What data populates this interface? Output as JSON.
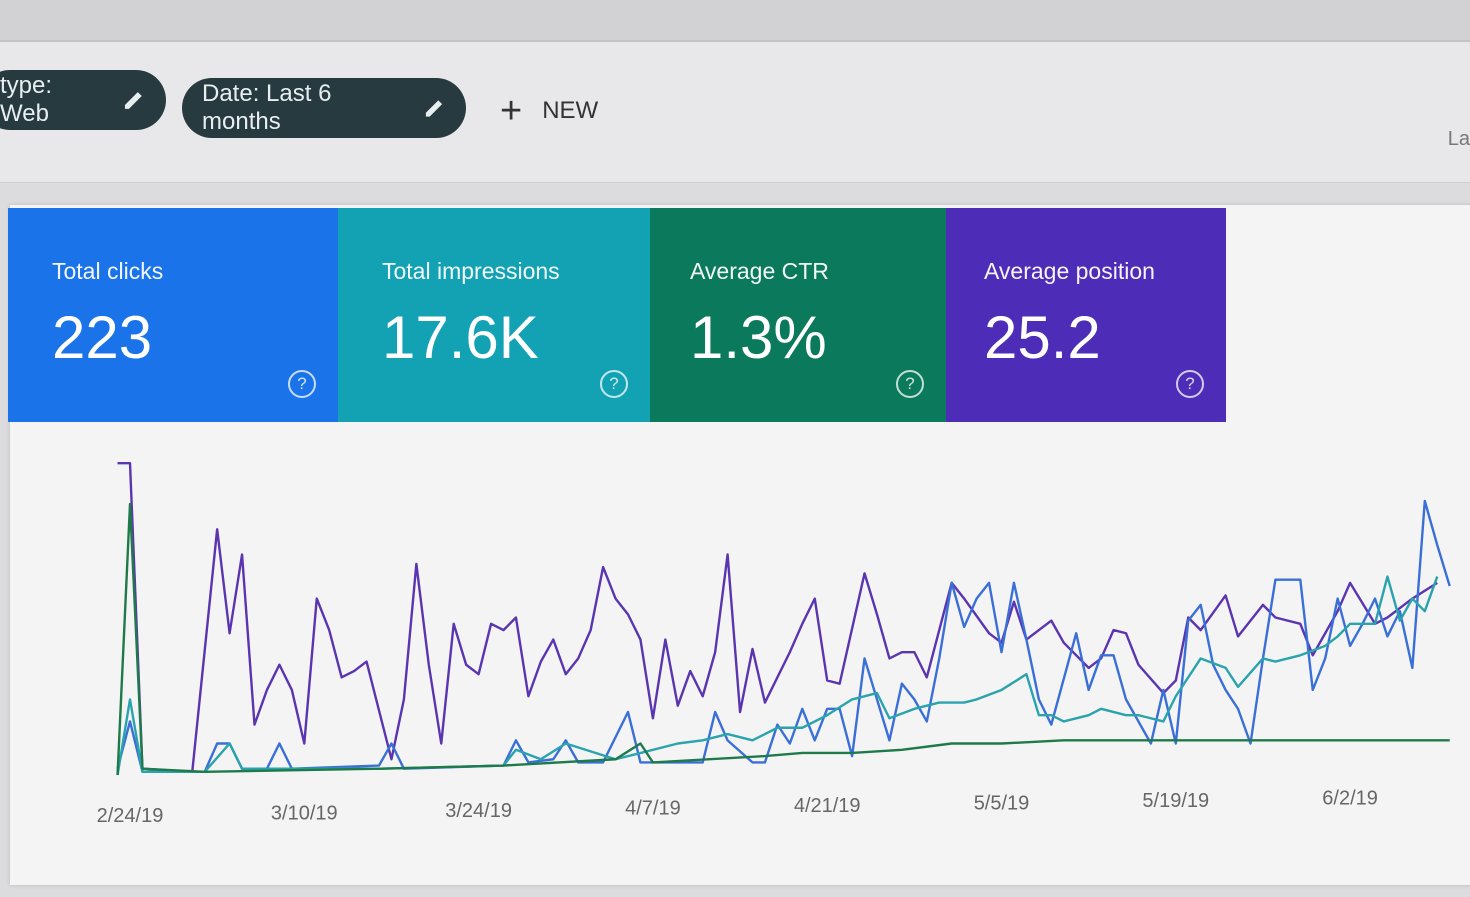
{
  "filters": {
    "chips": [
      {
        "label": "type: Web",
        "icon": "pencil-icon"
      },
      {
        "label": "Date: Last 6 months",
        "icon": "pencil-icon"
      }
    ],
    "new_label": "NEW",
    "new_icon": "plus-icon",
    "edge_text": "La"
  },
  "metrics": [
    {
      "label": "Total clicks",
      "value": "223",
      "color": "#1a73e8",
      "icon": "help-icon"
    },
    {
      "label": "Total impressions",
      "value": "17.6K",
      "color": "#12a2b4",
      "icon": "help-icon"
    },
    {
      "label": "Average CTR",
      "value": "1.3%",
      "color": "#0b7a5c",
      "icon": "help-icon"
    },
    {
      "label": "Average position",
      "value": "25.2",
      "color": "#4d2db7",
      "icon": "help-icon"
    }
  ],
  "chart_data": {
    "type": "line",
    "x_tick_labels": [
      "2/24/19",
      "3/10/19",
      "3/24/19",
      "4/7/19",
      "4/21/19",
      "5/5/19",
      "5/19/19",
      "6/2/19"
    ],
    "y_axis_shown": false,
    "grid": false,
    "series": [
      {
        "metric": "Average position",
        "color": "#5b35b0",
        "points": [
          [
            "2/24",
            99
          ],
          [
            "2/25",
            99
          ],
          [
            "2/26",
            2
          ],
          [
            "3/1",
            1
          ],
          [
            "3/3",
            78
          ],
          [
            "3/4",
            45
          ],
          [
            "3/5",
            70
          ],
          [
            "3/6",
            16
          ],
          [
            "3/7",
            27
          ],
          [
            "3/8",
            35
          ],
          [
            "3/9",
            27
          ],
          [
            "3/10",
            10
          ],
          [
            "3/11",
            56
          ],
          [
            "3/12",
            46
          ],
          [
            "3/13",
            31
          ],
          [
            "3/14",
            33
          ],
          [
            "3/15",
            36
          ],
          [
            "3/17",
            5
          ],
          [
            "3/18",
            24
          ],
          [
            "3/19",
            67
          ],
          [
            "3/20",
            35
          ],
          [
            "3/21",
            10
          ],
          [
            "3/22",
            48
          ],
          [
            "3/23",
            35
          ],
          [
            "3/24",
            32
          ],
          [
            "3/25",
            48
          ],
          [
            "3/26",
            46
          ],
          [
            "3/27",
            50
          ],
          [
            "3/28",
            25
          ],
          [
            "3/29",
            36
          ],
          [
            "3/30",
            43
          ],
          [
            "3/31",
            32
          ],
          [
            "4/1",
            37
          ],
          [
            "4/2",
            46
          ],
          [
            "4/3",
            66
          ],
          [
            "4/4",
            56
          ],
          [
            "4/5",
            51
          ],
          [
            "4/6",
            43
          ],
          [
            "4/7",
            18
          ],
          [
            "4/8",
            43
          ],
          [
            "4/9",
            22
          ],
          [
            "4/10",
            33
          ],
          [
            "4/11",
            25
          ],
          [
            "4/12",
            39
          ],
          [
            "4/13",
            70
          ],
          [
            "4/14",
            20
          ],
          [
            "4/15",
            40
          ],
          [
            "4/16",
            23
          ],
          [
            "4/18",
            39
          ],
          [
            "4/19",
            48
          ],
          [
            "4/20",
            56
          ],
          [
            "4/21",
            30
          ],
          [
            "4/22",
            29
          ],
          [
            "4/24",
            64
          ],
          [
            "4/25",
            51
          ],
          [
            "4/26",
            37
          ],
          [
            "4/27",
            39
          ],
          [
            "4/28",
            39
          ],
          [
            "4/29",
            31
          ],
          [
            "4/30",
            46
          ],
          [
            "5/1",
            61
          ],
          [
            "5/2",
            56
          ],
          [
            "5/4",
            45
          ],
          [
            "5/5",
            42
          ],
          [
            "5/6",
            55
          ],
          [
            "5/7",
            43
          ],
          [
            "5/9",
            49
          ],
          [
            "5/10",
            42
          ],
          [
            "5/12",
            34
          ],
          [
            "5/13",
            37
          ],
          [
            "5/14",
            46
          ],
          [
            "5/15",
            45
          ],
          [
            "5/16",
            35
          ],
          [
            "5/18",
            26
          ],
          [
            "5/19",
            30
          ],
          [
            "5/20",
            50
          ],
          [
            "5/21",
            46
          ],
          [
            "5/23",
            57
          ],
          [
            "5/24",
            44
          ],
          [
            "5/26",
            54
          ],
          [
            "5/27",
            50
          ],
          [
            "5/29",
            48
          ],
          [
            "5/30",
            38
          ],
          [
            "6/1",
            52
          ],
          [
            "6/2",
            61
          ],
          [
            "6/4",
            48
          ],
          [
            "6/5",
            50
          ],
          [
            "6/7",
            56
          ],
          [
            "6/9",
            61
          ]
        ]
      },
      {
        "metric": "Total clicks",
        "color": "#3a6fd8",
        "points": [
          [
            "2/24",
            2
          ],
          [
            "2/25",
            17
          ],
          [
            "2/26",
            1
          ],
          [
            "3/2",
            1
          ],
          [
            "3/3",
            10
          ],
          [
            "3/4",
            10
          ],
          [
            "3/5",
            2
          ],
          [
            "3/7",
            2
          ],
          [
            "3/8",
            10
          ],
          [
            "3/9",
            2
          ],
          [
            "3/16",
            3
          ],
          [
            "3/17",
            10
          ],
          [
            "3/18",
            2
          ],
          [
            "3/26",
            3
          ],
          [
            "3/27",
            11
          ],
          [
            "3/28",
            4
          ],
          [
            "3/30",
            5
          ],
          [
            "3/31",
            11
          ],
          [
            "4/1",
            4
          ],
          [
            "4/3",
            4
          ],
          [
            "4/5",
            20
          ],
          [
            "4/6",
            4
          ],
          [
            "4/11",
            4
          ],
          [
            "4/12",
            20
          ],
          [
            "4/13",
            11
          ],
          [
            "4/15",
            4
          ],
          [
            "4/16",
            4
          ],
          [
            "4/17",
            16
          ],
          [
            "4/18",
            10
          ],
          [
            "4/19",
            21
          ],
          [
            "4/20",
            11
          ],
          [
            "4/21",
            21
          ],
          [
            "4/22",
            21
          ],
          [
            "4/23",
            6
          ],
          [
            "4/24",
            37
          ],
          [
            "4/26",
            11
          ],
          [
            "4/27",
            29
          ],
          [
            "4/28",
            24
          ],
          [
            "4/29",
            17
          ],
          [
            "4/30",
            37
          ],
          [
            "5/1",
            61
          ],
          [
            "5/2",
            47
          ],
          [
            "5/3",
            56
          ],
          [
            "5/4",
            61
          ],
          [
            "5/5",
            39
          ],
          [
            "5/6",
            61
          ],
          [
            "5/7",
            43
          ],
          [
            "5/8",
            24
          ],
          [
            "5/9",
            16
          ],
          [
            "5/11",
            45
          ],
          [
            "5/12",
            27
          ],
          [
            "5/13",
            38
          ],
          [
            "5/14",
            38
          ],
          [
            "5/15",
            24
          ],
          [
            "5/17",
            10
          ],
          [
            "5/18",
            27
          ],
          [
            "5/19",
            10
          ],
          [
            "5/20",
            49
          ],
          [
            "5/21",
            54
          ],
          [
            "5/22",
            35
          ],
          [
            "5/23",
            27
          ],
          [
            "5/24",
            21
          ],
          [
            "5/25",
            10
          ],
          [
            "5/26",
            37
          ],
          [
            "5/27",
            62
          ],
          [
            "5/29",
            62
          ],
          [
            "5/30",
            27
          ],
          [
            "5/31",
            37
          ],
          [
            "6/1",
            56
          ],
          [
            "6/2",
            41
          ],
          [
            "6/3",
            48
          ],
          [
            "6/4",
            56
          ],
          [
            "6/5",
            44
          ],
          [
            "6/6",
            52
          ],
          [
            "6/7",
            34
          ],
          [
            "6/8",
            87
          ],
          [
            "6/9",
            73
          ],
          [
            "6/10",
            60
          ]
        ]
      },
      {
        "metric": "Total impressions",
        "color": "#2aa3ad",
        "points": [
          [
            "2/24",
            0
          ],
          [
            "2/25",
            24
          ],
          [
            "2/26",
            1
          ],
          [
            "3/2",
            1
          ],
          [
            "3/4",
            10
          ],
          [
            "3/5",
            2
          ],
          [
            "3/16",
            2
          ],
          [
            "3/26",
            3
          ],
          [
            "3/27",
            8
          ],
          [
            "3/29",
            5
          ],
          [
            "3/31",
            10
          ],
          [
            "4/4",
            5
          ],
          [
            "4/9",
            10
          ],
          [
            "4/11",
            11
          ],
          [
            "4/13",
            13
          ],
          [
            "4/15",
            11
          ],
          [
            "4/17",
            15
          ],
          [
            "4/19",
            15
          ],
          [
            "4/21",
            19
          ],
          [
            "4/23",
            24
          ],
          [
            "4/25",
            26
          ],
          [
            "4/26",
            18
          ],
          [
            "4/28",
            21
          ],
          [
            "4/30",
            23
          ],
          [
            "5/2",
            23
          ],
          [
            "5/3",
            24
          ],
          [
            "5/5",
            27
          ],
          [
            "5/7",
            32
          ],
          [
            "5/8",
            19
          ],
          [
            "5/9",
            19
          ],
          [
            "5/10",
            17
          ],
          [
            "5/12",
            19
          ],
          [
            "5/13",
            21
          ],
          [
            "5/15",
            19
          ],
          [
            "5/16",
            19
          ],
          [
            "5/18",
            17
          ],
          [
            "5/19",
            25
          ],
          [
            "5/21",
            37
          ],
          [
            "5/23",
            34
          ],
          [
            "5/24",
            28
          ],
          [
            "5/26",
            37
          ],
          [
            "5/27",
            36
          ],
          [
            "5/29",
            38
          ],
          [
            "5/31",
            41
          ],
          [
            "6/1",
            44
          ],
          [
            "6/2",
            48
          ],
          [
            "6/4",
            48
          ],
          [
            "6/5",
            63
          ],
          [
            "6/6",
            49
          ],
          [
            "6/7",
            56
          ],
          [
            "6/8",
            52
          ],
          [
            "6/9",
            63
          ]
        ]
      },
      {
        "metric": "Average CTR",
        "color": "#1f7a4a",
        "points": [
          [
            "2/24",
            0
          ],
          [
            "2/25",
            86
          ],
          [
            "2/26",
            2
          ],
          [
            "3/2",
            1
          ],
          [
            "3/16",
            2
          ],
          [
            "3/26",
            3
          ],
          [
            "4/4",
            5
          ],
          [
            "4/6",
            10
          ],
          [
            "4/7",
            4
          ],
          [
            "4/16",
            6
          ],
          [
            "4/19",
            7
          ],
          [
            "4/23",
            7
          ],
          [
            "4/27",
            8
          ],
          [
            "5/1",
            10
          ],
          [
            "5/5",
            10
          ],
          [
            "5/10",
            11
          ],
          [
            "5/17",
            11
          ],
          [
            "5/25",
            11
          ],
          [
            "6/2",
            11
          ],
          [
            "6/10",
            11
          ]
        ]
      }
    ]
  }
}
